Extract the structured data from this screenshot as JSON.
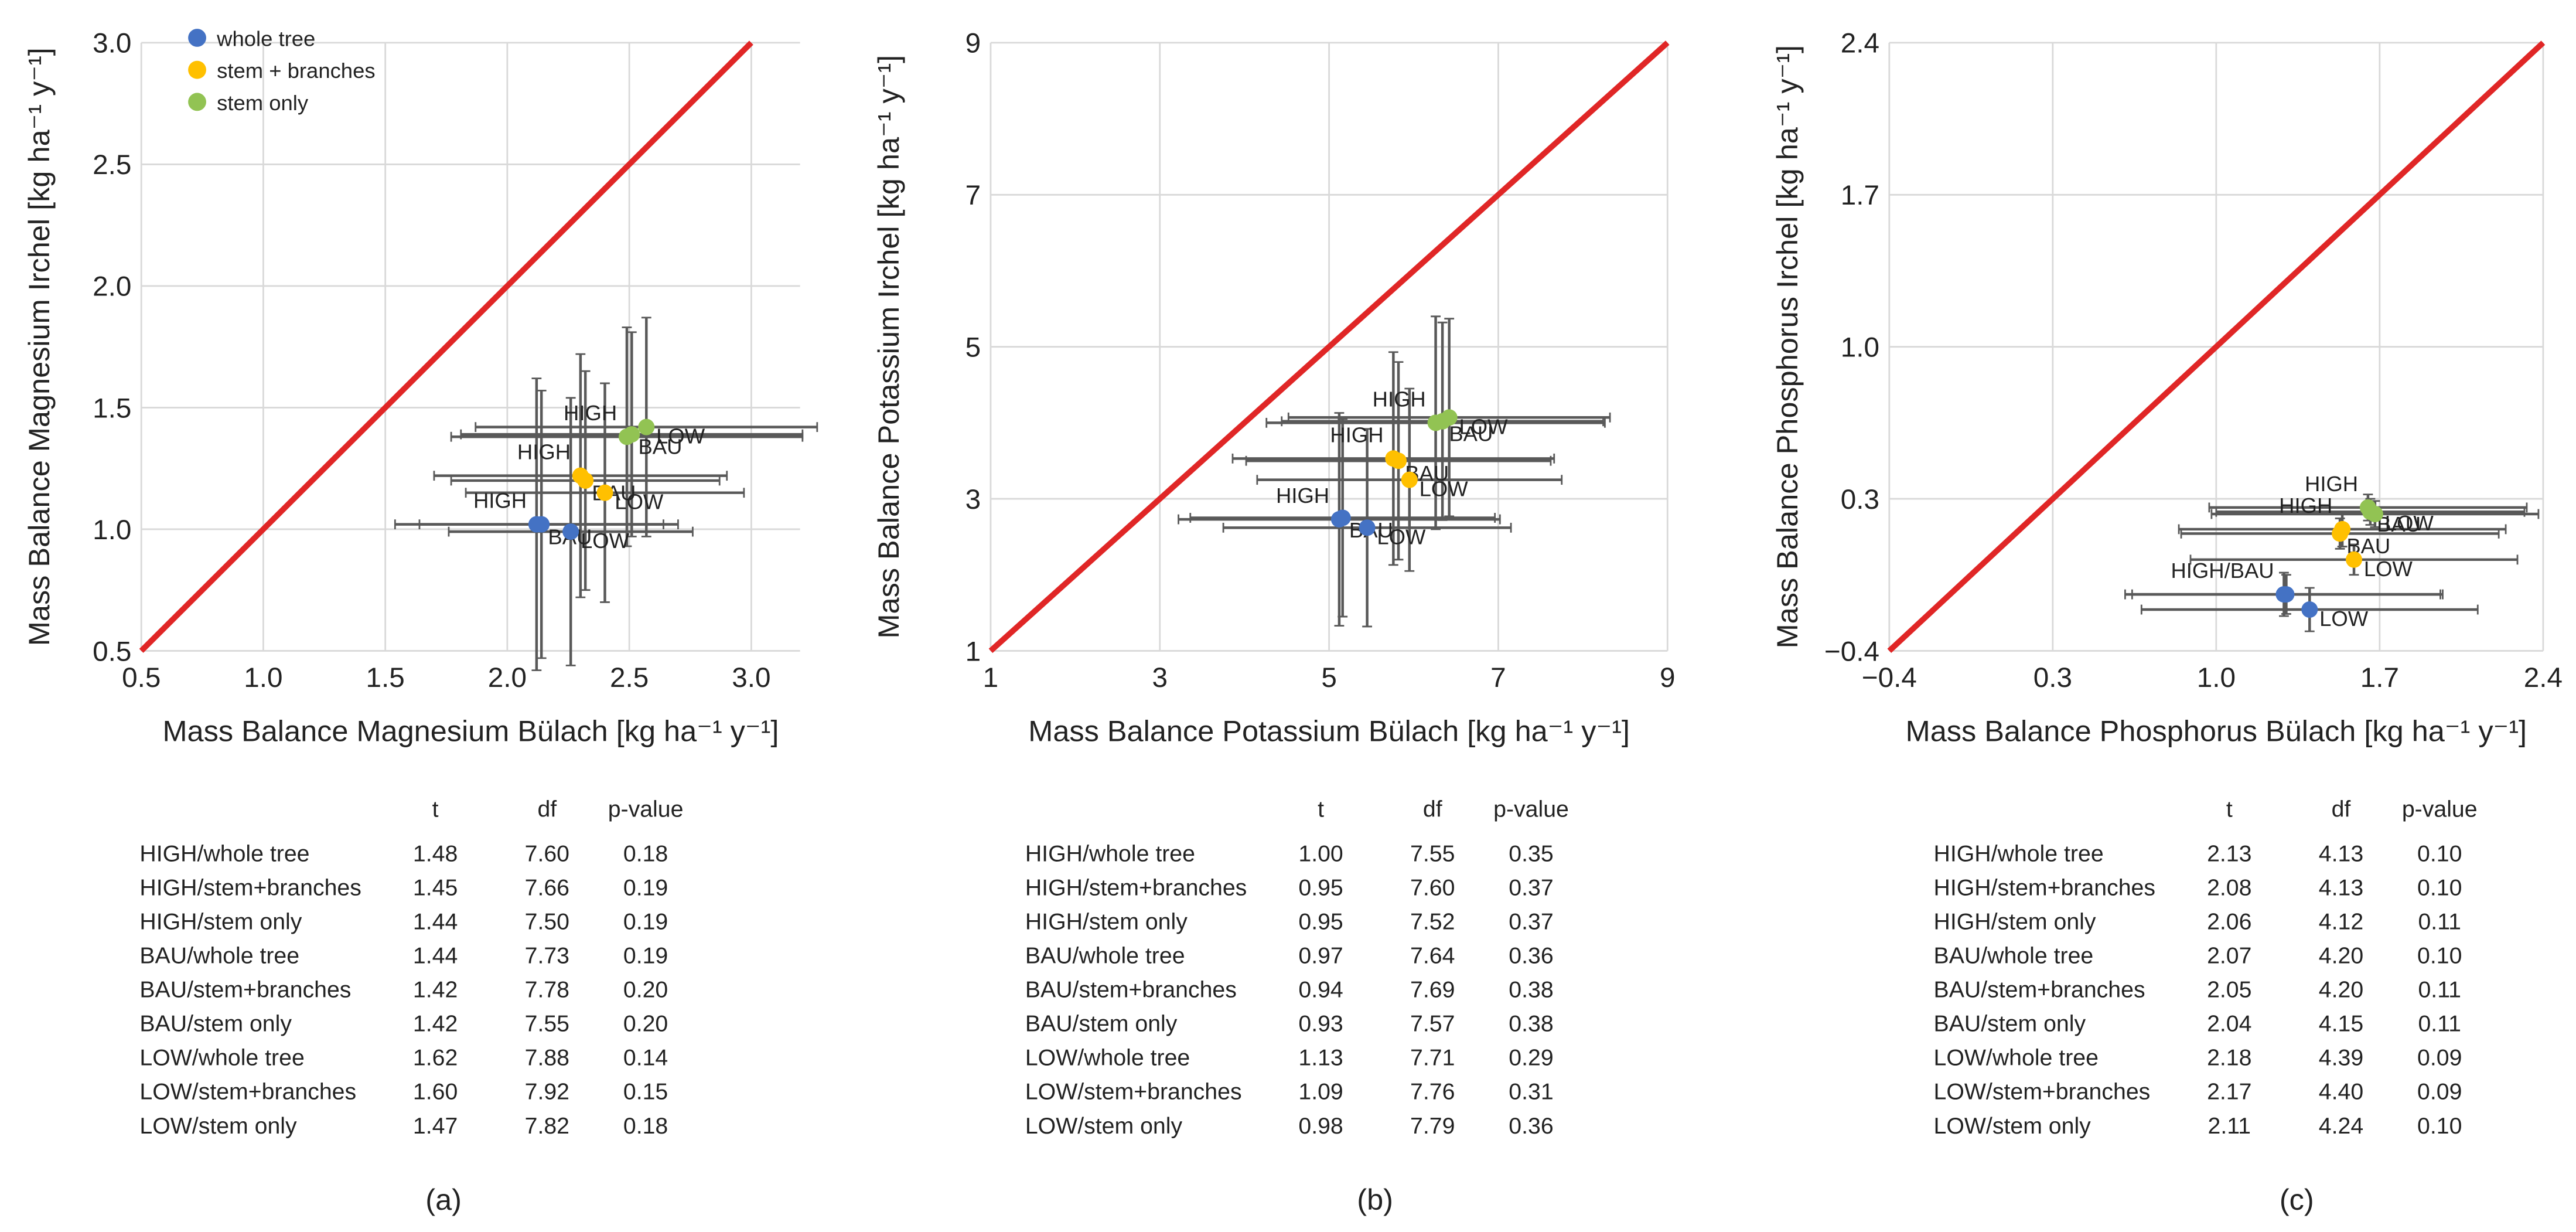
{
  "chart_data": [
    {
      "type": "scatter",
      "x_label": "Mass Balance Magnesium Bülach [kg ha⁻¹ y⁻¹]",
      "y_label": "Mass Balance Magnesium Irchel [kg ha⁻¹ y⁻¹]",
      "xlim": [
        0.5,
        3.2
      ],
      "ylim": [
        0.5,
        3.0
      ],
      "xticks": [
        0.5,
        {
          "value": 1,
          "label": "1.0"
        },
        1.5,
        {
          "value": 2,
          "label": "2.0"
        },
        2.5,
        {
          "value": 3,
          "label": "3.0"
        }
      ],
      "yticks": [
        0.5,
        {
          "value": 1,
          "label": "1.0"
        },
        1.5,
        {
          "value": 2,
          "label": "2.0"
        },
        2.5,
        {
          "value": 3,
          "label": "3.0"
        }
      ],
      "grid": true,
      "legend": "upper left",
      "line_color": "#e02626",
      "series": [
        {
          "name": "whole tree",
          "color": "#4472c4",
          "labels": [
            "HIGH",
            "BAU",
            "LOW"
          ],
          "x": [
            2.12,
            2.14,
            2.26
          ],
          "values": [
            1.02,
            1.02,
            0.99
          ],
          "xerr": [
            0.58,
            0.5,
            0.5
          ],
          "yerr": [
            0.6,
            0.55,
            0.55
          ]
        },
        {
          "name": "stem + branches",
          "color": "#ffc000",
          "labels": [
            "HIGH",
            "BAU",
            "LOW"
          ],
          "x": [
            2.3,
            2.32,
            2.4
          ],
          "values": [
            1.22,
            1.2,
            1.15
          ],
          "xerr": [
            0.6,
            0.55,
            0.57
          ],
          "yerr": [
            0.5,
            0.45,
            0.45
          ]
        },
        {
          "name": "stem only",
          "color": "#92c353",
          "labels": [
            "HIGH",
            "BAU",
            "LOW"
          ],
          "x": [
            2.49,
            2.51,
            2.57
          ],
          "values": [
            1.38,
            1.39,
            1.42
          ],
          "xerr": [
            0.72,
            0.7,
            0.7
          ],
          "yerr": [
            0.45,
            0.42,
            0.45
          ]
        }
      ]
    },
    {
      "type": "scatter",
      "x_label": "Mass Balance Potassium Bülach [kg ha⁻¹ y⁻¹]",
      "y_label": "Mass Balance Potassium Irchel [kg ha⁻¹ y⁻¹]",
      "xlim": [
        1,
        9
      ],
      "ylim": [
        1,
        9
      ],
      "xticks": [
        1,
        3,
        5,
        7,
        9
      ],
      "yticks": [
        1,
        3,
        5,
        7,
        9
      ],
      "grid": true,
      "line_color": "#e02626",
      "series": [
        {
          "color": "#4472c4",
          "labels": [
            "HIGH",
            "BAU",
            "LOW"
          ],
          "x": [
            5.12,
            5.16,
            5.45
          ],
          "values": [
            2.73,
            2.75,
            2.62
          ],
          "xerr": [
            1.9,
            1.8,
            1.7
          ],
          "yerr": [
            1.4,
            1.3,
            1.3
          ]
        },
        {
          "color": "#ffc000",
          "labels": [
            "HIGH",
            "BAU",
            "LOW"
          ],
          "x": [
            5.76,
            5.82,
            5.95
          ],
          "values": [
            3.53,
            3.5,
            3.25
          ],
          "xerr": [
            1.9,
            1.8,
            1.8
          ],
          "yerr": [
            1.4,
            1.3,
            1.2
          ]
        },
        {
          "color": "#92c353",
          "labels": [
            "HIGH",
            "BAU",
            "LOW"
          ],
          "x": [
            6.26,
            6.34,
            6.42
          ],
          "values": [
            4.0,
            4.02,
            4.07
          ],
          "xerr": [
            2.0,
            1.9,
            1.9
          ],
          "yerr": [
            1.4,
            1.3,
            1.3
          ]
        }
      ]
    },
    {
      "type": "scatter",
      "x_label": "Mass Balance Phosphorus Bülach [kg ha⁻¹ y⁻¹]",
      "y_label": "Mass Balance Phosphorus Irchel [kg ha⁻¹ y⁻¹]",
      "xlim": [
        -0.4,
        2.4
      ],
      "ylim": [
        -0.4,
        2.4
      ],
      "xticks": [
        {
          "value": -0.4,
          "label": "−0.4"
        },
        0.3,
        {
          "value": 1,
          "label": "1.0"
        },
        1.7,
        2.4
      ],
      "yticks": [
        {
          "value": -0.4,
          "label": "−0.4"
        },
        0.3,
        {
          "value": 1,
          "label": "1.0"
        },
        1.7,
        2.4
      ],
      "grid": true,
      "line_color": "#e02626",
      "series": [
        {
          "color": "#4472c4",
          "labels": [
            "HIGH/BAU",
            null,
            "LOW"
          ],
          "x": [
            1.29,
            1.3,
            1.4
          ],
          "values": [
            -0.14,
            -0.14,
            -0.21
          ],
          "xerr": [
            0.68,
            0.66,
            0.72
          ],
          "yerr": [
            0.1,
            0.09,
            0.1
          ]
        },
        {
          "color": "#ffc000",
          "labels": [
            "HIGH",
            "BAU",
            "LOW"
          ],
          "x": [
            1.54,
            1.53,
            1.59
          ],
          "values": [
            0.16,
            0.14,
            0.02
          ],
          "xerr": [
            0.7,
            0.68,
            0.7
          ],
          "yerr": [
            0.08,
            0.07,
            0.07
          ]
        },
        {
          "color": "#92c353",
          "labels": [
            "HIGH",
            "BAU",
            "LOW"
          ],
          "x": [
            1.65,
            1.66,
            1.68
          ],
          "values": [
            0.26,
            0.24,
            0.23
          ],
          "xerr": [
            0.68,
            0.66,
            0.7
          ],
          "yerr": [
            0.06,
            0.06,
            0.06
          ]
        }
      ]
    }
  ],
  "tables": [
    {
      "columns": [
        "t",
        "df",
        "p-value"
      ],
      "rows": [
        [
          "HIGH/whole tree",
          "1.48",
          "7.60",
          "0.18"
        ],
        [
          "HIGH/stem+branches",
          "1.45",
          "7.66",
          "0.19"
        ],
        [
          "HIGH/stem only",
          "1.44",
          "7.50",
          "0.19"
        ],
        [
          "BAU/whole tree",
          "1.44",
          "7.73",
          "0.19"
        ],
        [
          "BAU/stem+branches",
          "1.42",
          "7.78",
          "0.20"
        ],
        [
          "BAU/stem only",
          "1.42",
          "7.55",
          "0.20"
        ],
        [
          "LOW/whole tree",
          "1.62",
          "7.88",
          "0.14"
        ],
        [
          "LOW/stem+branches",
          "1.60",
          "7.92",
          "0.15"
        ],
        [
          "LOW/stem only",
          "1.47",
          "7.82",
          "0.18"
        ]
      ]
    },
    {
      "columns": [
        "t",
        "df",
        "p-value"
      ],
      "rows": [
        [
          "HIGH/whole tree",
          "1.00",
          "7.55",
          "0.35"
        ],
        [
          "HIGH/stem+branches",
          "0.95",
          "7.60",
          "0.37"
        ],
        [
          "HIGH/stem only",
          "0.95",
          "7.52",
          "0.37"
        ],
        [
          "BAU/whole tree",
          "0.97",
          "7.64",
          "0.36"
        ],
        [
          "BAU/stem+branches",
          "0.94",
          "7.69",
          "0.38"
        ],
        [
          "BAU/stem only",
          "0.93",
          "7.57",
          "0.38"
        ],
        [
          "LOW/whole tree",
          "1.13",
          "7.71",
          "0.29"
        ],
        [
          "LOW/stem+branches",
          "1.09",
          "7.76",
          "0.31"
        ],
        [
          "LOW/stem only",
          "0.98",
          "7.79",
          "0.36"
        ]
      ]
    },
    {
      "columns": [
        "t",
        "df",
        "p-value"
      ],
      "rows": [
        [
          "HIGH/whole tree",
          "2.13",
          "4.13",
          "0.10"
        ],
        [
          "HIGH/stem+branches",
          "2.08",
          "4.13",
          "0.10"
        ],
        [
          "HIGH/stem only",
          "2.06",
          "4.12",
          "0.11"
        ],
        [
          "BAU/whole tree",
          "2.07",
          "4.20",
          "0.10"
        ],
        [
          "BAU/stem+branches",
          "2.05",
          "4.20",
          "0.11"
        ],
        [
          "BAU/stem only",
          "2.04",
          "4.15",
          "0.11"
        ],
        [
          "LOW/whole tree",
          "2.18",
          "4.39",
          "0.09"
        ],
        [
          "LOW/stem+branches",
          "2.17",
          "4.40",
          "0.09"
        ],
        [
          "LOW/stem only",
          "2.11",
          "4.24",
          "0.10"
        ]
      ]
    }
  ],
  "panel_labels": [
    "(a)",
    "(b)",
    "(c)"
  ]
}
